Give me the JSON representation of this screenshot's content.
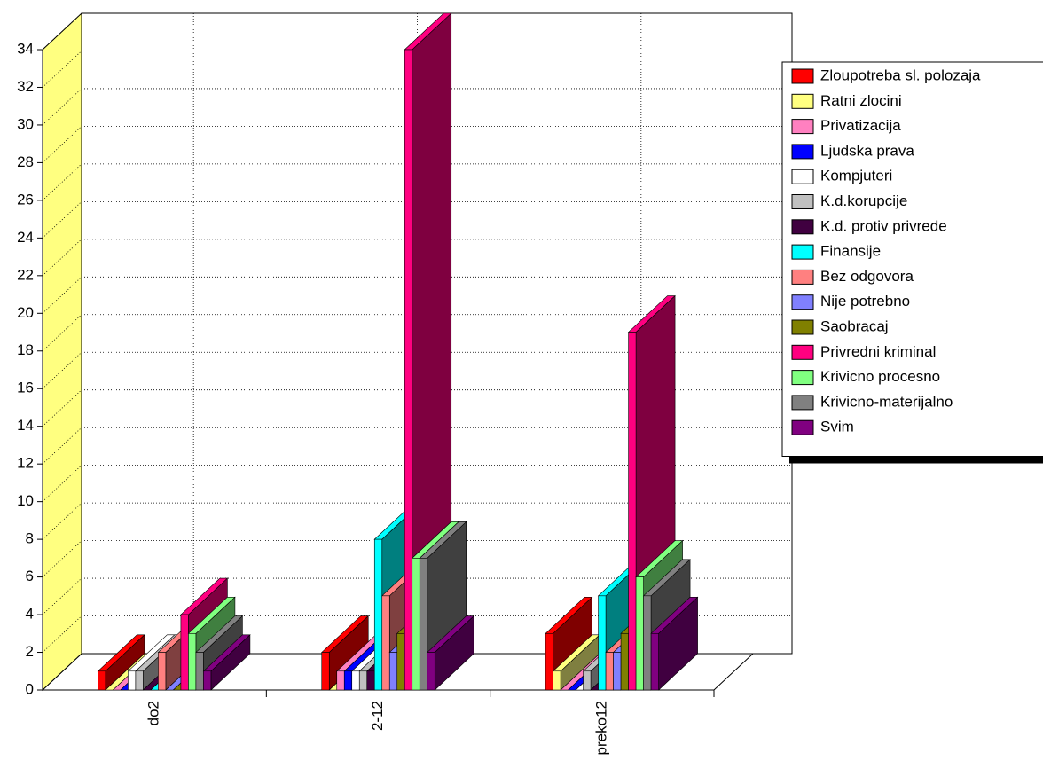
{
  "chart_data": {
    "type": "bar3d",
    "categories": [
      "do2",
      "2-12",
      "preko12"
    ],
    "series": [
      {
        "name": "Zloupotreba sl. polozaja",
        "color": "#ff0000",
        "values": [
          1,
          2,
          3
        ]
      },
      {
        "name": "Ratni zlocini",
        "color": "#ffff80",
        "values": [
          0,
          0,
          1
        ]
      },
      {
        "name": "Privatizacija",
        "color": "#ff80c0",
        "values": [
          0,
          1,
          0
        ]
      },
      {
        "name": "Ljudska prava",
        "color": "#0000ff",
        "values": [
          0,
          1,
          0
        ]
      },
      {
        "name": "Kompjuteri",
        "color": "#ffffff",
        "values": [
          1,
          1,
          0
        ]
      },
      {
        "name": "K.d.korupcije",
        "color": "#c0c0c0",
        "values": [
          1,
          1,
          1
        ]
      },
      {
        "name": "K.d. protiv privrede",
        "color": "#400040",
        "values": [
          0,
          1,
          0
        ]
      },
      {
        "name": "Finansije",
        "color": "#00ffff",
        "values": [
          0,
          8,
          5
        ]
      },
      {
        "name": "Bez odgovora",
        "color": "#ff8080",
        "values": [
          2,
          5,
          2
        ]
      },
      {
        "name": "Nije potrebno",
        "color": "#8080ff",
        "values": [
          0,
          2,
          2
        ]
      },
      {
        "name": "Saobracaj",
        "color": "#808000",
        "values": [
          0,
          3,
          3
        ]
      },
      {
        "name": "Privredni  kriminal",
        "color": "#ff0080",
        "values": [
          4,
          34,
          19
        ]
      },
      {
        "name": "Krivicno procesno",
        "color": "#80ff80",
        "values": [
          3,
          7,
          6
        ]
      },
      {
        "name": "Krivicno-materijalno",
        "color": "#808080",
        "values": [
          2,
          7,
          5
        ]
      },
      {
        "name": "Svim",
        "color": "#800080",
        "values": [
          1,
          2,
          3
        ]
      }
    ],
    "ylim": [
      0,
      34
    ],
    "yticks": [
      0,
      2,
      4,
      6,
      8,
      10,
      12,
      14,
      16,
      18,
      20,
      22,
      24,
      26,
      28,
      30,
      32,
      34
    ],
    "grid": true,
    "legend": "right",
    "wall_color": "#ffff80"
  }
}
